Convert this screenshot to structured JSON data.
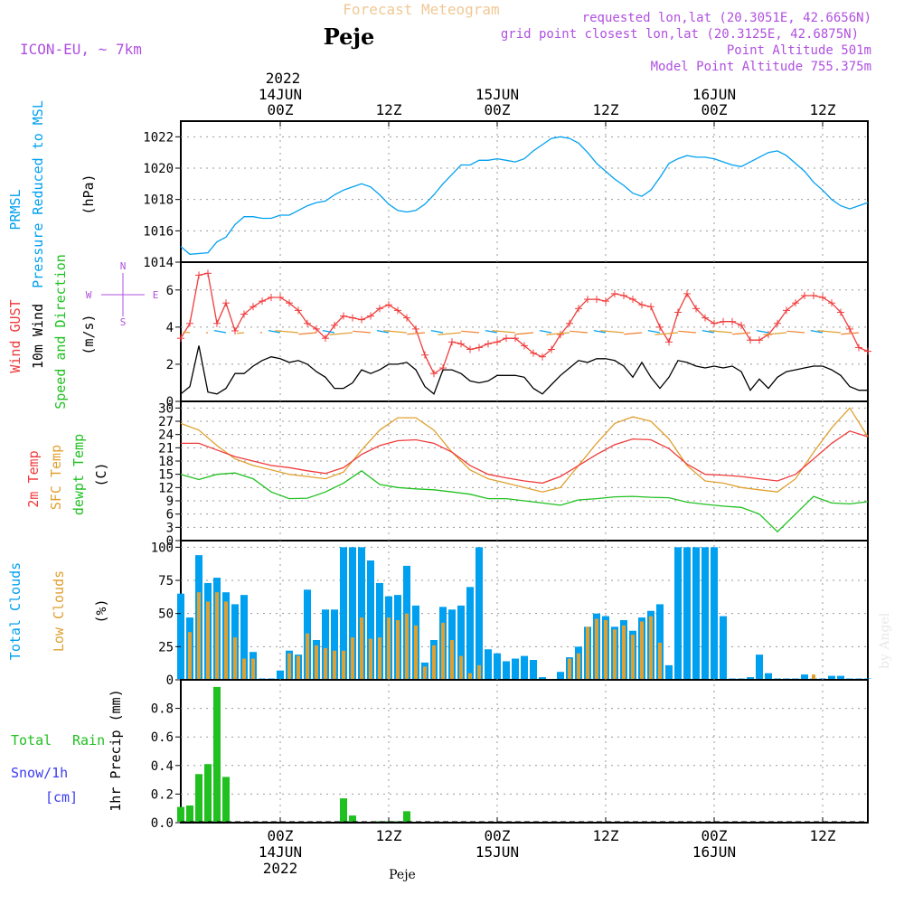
{
  "header": {
    "title": "Forecast Meteogram",
    "location": "Peje",
    "model": "ICON-EU, ~ 7km",
    "requested": "requested lon,lat (20.3051E, 42.6656N)",
    "gridpoint": "grid point closest lon,lat (20.3125E, 42.6875N)",
    "point_alt": "Point Altitude 501m",
    "model_alt": "Model Point Altitude 755.375m",
    "footer_name": "Peje",
    "watermark": "by Angel"
  },
  "time_axis": {
    "top_year": "2022",
    "labels": [
      {
        "day": "14JUN",
        "hour": "00Z",
        "t": 0
      },
      {
        "day": "",
        "hour": "12Z",
        "t": 12
      },
      {
        "day": "15JUN",
        "hour": "00Z",
        "t": 24
      },
      {
        "day": "",
        "hour": "12Z",
        "t": 36
      },
      {
        "day": "16JUN",
        "hour": "00Z",
        "t": 48
      },
      {
        "day": "",
        "hour": "12Z",
        "t": 60
      }
    ],
    "bottom_year": "2022",
    "range": [
      -11,
      65
    ]
  },
  "panels_text": {
    "pressure": {
      "left1": "PRMSL",
      "left2": "Pressure Reduced to MSL",
      "unit": "(hPa)"
    },
    "wind": {
      "left1": "Wind GUST",
      "left2": "10m Wind",
      "left3": "Speed and Direction",
      "unit": "(m/s)",
      "compass": [
        "N",
        "W",
        "E",
        "S"
      ]
    },
    "temp": {
      "left1": "2m Temp",
      "left2": "SFC Temp",
      "left3": "dewpt Temp",
      "unit": "(C)"
    },
    "clouds": {
      "left1": "Total Clouds",
      "left2": "Low Clouds",
      "unit": "(%)"
    },
    "precip": {
      "left1": "Total",
      "left2": "Rain",
      "left3": "Snow/1h",
      "left4": "[cm]",
      "unit": "1hr Precip (mm)"
    }
  },
  "colors": {
    "blue": "#00a0f0",
    "red": "#f03c3c",
    "orange": "#e0a030",
    "green": "#20c020",
    "purple": "#b050e0",
    "black": "#000000"
  },
  "chart_data": [
    {
      "type": "line",
      "name": "pressure",
      "x": [
        -11,
        -10,
        -8,
        -7,
        -6,
        -5,
        -4,
        -3,
        -2,
        -1,
        0,
        1,
        2,
        3,
        4,
        5,
        6,
        7,
        8,
        9,
        10,
        11,
        12,
        13,
        14,
        15,
        16,
        17,
        18,
        19,
        20,
        21,
        22,
        23,
        24,
        25,
        26,
        27,
        28,
        29,
        30,
        31,
        32,
        33,
        34,
        35,
        36,
        37,
        38,
        39,
        40,
        41,
        42,
        43,
        44,
        45,
        46,
        47,
        48,
        49,
        50,
        51,
        52,
        53,
        54,
        55,
        56,
        57,
        58,
        59,
        60,
        61,
        62,
        63,
        64,
        65
      ],
      "series": [
        {
          "name": "PRMSL",
          "values": [
            1015.0,
            1014.5,
            1014.6,
            1015.3,
            1015.6,
            1016.4,
            1016.9,
            1016.9,
            1016.8,
            1016.8,
            1017.0,
            1017.0,
            1017.3,
            1017.6,
            1017.8,
            1017.9,
            1018.3,
            1018.6,
            1018.8,
            1019.0,
            1018.8,
            1018.3,
            1017.7,
            1017.3,
            1017.2,
            1017.3,
            1017.7,
            1018.3,
            1019.0,
            1019.6,
            1020.2,
            1020.2,
            1020.5,
            1020.5,
            1020.6,
            1020.5,
            1020.4,
            1020.6,
            1021.1,
            1021.5,
            1021.9,
            1022.0,
            1021.9,
            1021.6,
            1021.0,
            1020.3,
            1019.8,
            1019.3,
            1018.9,
            1018.4,
            1018.2,
            1018.6,
            1019.4,
            1020.3,
            1020.6,
            1020.8,
            1020.7,
            1020.7,
            1020.6,
            1020.4,
            1020.2,
            1020.1,
            1020.4,
            1020.7,
            1021.0,
            1021.1,
            1020.8,
            1020.3,
            1019.8,
            1019.1,
            1018.6,
            1018.0,
            1017.6,
            1017.4,
            1017.6,
            1017.8
          ]
        }
      ],
      "ylim": [
        1014,
        1023
      ],
      "yticks": [
        1014,
        1016,
        1018,
        1020,
        1022
      ]
    },
    {
      "type": "line",
      "name": "wind",
      "x": [
        -11,
        -10,
        -9,
        -8,
        -7,
        -6,
        -5,
        -4,
        -3,
        -2,
        -1,
        0,
        1,
        2,
        3,
        4,
        5,
        6,
        7,
        8,
        9,
        10,
        11,
        12,
        13,
        14,
        15,
        16,
        17,
        18,
        19,
        20,
        21,
        22,
        23,
        24,
        25,
        26,
        27,
        28,
        29,
        30,
        31,
        32,
        33,
        34,
        35,
        36,
        37,
        38,
        39,
        40,
        41,
        42,
        43,
        44,
        45,
        46,
        47,
        48,
        49,
        50,
        51,
        52,
        53,
        54,
        55,
        56,
        57,
        58,
        59,
        60,
        61,
        62,
        63,
        64,
        65
      ],
      "series": [
        {
          "name": "Wind GUST",
          "values": [
            3.4,
            4.2,
            6.8,
            6.9,
            4.2,
            5.3,
            3.8,
            4.7,
            5.1,
            5.4,
            5.6,
            5.6,
            5.3,
            4.9,
            4.2,
            3.9,
            3.4,
            4.1,
            4.6,
            4.5,
            4.4,
            4.6,
            5.0,
            5.2,
            4.9,
            4.5,
            3.9,
            2.5,
            1.5,
            1.8,
            3.2,
            3.1,
            2.8,
            2.9,
            3.1,
            3.2,
            3.4,
            3.4,
            3.0,
            2.6,
            2.4,
            2.8,
            3.6,
            4.2,
            5.0,
            5.5,
            5.5,
            5.4,
            5.8,
            5.7,
            5.5,
            5.2,
            5.1,
            4.0,
            3.2,
            4.8,
            5.8,
            5.0,
            4.5,
            4.2,
            4.3,
            4.3,
            4.1,
            3.3,
            3.3,
            3.6,
            4.2,
            4.9,
            5.3,
            5.7,
            5.7,
            5.6,
            5.3,
            4.8,
            3.9,
            2.9,
            2.7
          ]
        },
        {
          "name": "10m Wind",
          "values": [
            0.4,
            0.8,
            3.0,
            0.5,
            0.4,
            0.7,
            1.5,
            1.5,
            1.9,
            2.2,
            2.4,
            2.3,
            2.1,
            2.2,
            2.0,
            1.6,
            1.3,
            0.7,
            0.7,
            1.0,
            1.7,
            1.5,
            1.7,
            2.0,
            2.0,
            2.1,
            1.7,
            0.8,
            0.4,
            1.7,
            1.7,
            1.5,
            1.1,
            1.0,
            1.1,
            1.4,
            1.4,
            1.4,
            1.3,
            0.7,
            0.4,
            0.9,
            1.4,
            1.8,
            2.2,
            2.1,
            2.3,
            2.3,
            2.2,
            1.9,
            1.3,
            2.1,
            1.3,
            0.7,
            1.3,
            2.2,
            2.1,
            1.9,
            1.8,
            1.9,
            1.8,
            1.9,
            1.6,
            0.6,
            1.2,
            0.7,
            1.3,
            1.6,
            1.7,
            1.8,
            1.9,
            1.9,
            1.7,
            1.4,
            0.8,
            0.6,
            0.6
          ]
        }
      ],
      "ylim": [
        0,
        7.5
      ],
      "yticks": [
        0,
        2,
        4,
        6
      ]
    },
    {
      "type": "line",
      "name": "temperature",
      "x": [
        -11,
        -9,
        -7,
        -5,
        -3,
        -1,
        1,
        3,
        5,
        7,
        9,
        11,
        13,
        15,
        17,
        19,
        21,
        23,
        25,
        27,
        29,
        31,
        33,
        35,
        37,
        39,
        41,
        43,
        45,
        47,
        49,
        51,
        53,
        55,
        57,
        59,
        61,
        63,
        65
      ],
      "series": [
        {
          "name": "2m Temp",
          "values": [
            22.0,
            22.0,
            20.5,
            19.0,
            18.0,
            17.0,
            16.5,
            15.8,
            15.2,
            16.5,
            19.5,
            21.5,
            22.6,
            22.8,
            22.0,
            20.0,
            17.0,
            15.0,
            14.2,
            13.5,
            13.0,
            14.5,
            17.0,
            19.5,
            21.7,
            23.0,
            22.8,
            20.8,
            17.3,
            15.0,
            14.8,
            14.5,
            14.0,
            13.5,
            15.0,
            18.5,
            22.0,
            24.8,
            23.5
          ]
        },
        {
          "name": "SFC Temp",
          "values": [
            26.5,
            25.0,
            21.5,
            18.5,
            17.0,
            16.0,
            15.0,
            14.5,
            14.0,
            15.5,
            20.5,
            25.0,
            27.8,
            27.8,
            25.0,
            20.0,
            16.0,
            14.0,
            13.0,
            12.0,
            11.0,
            12.0,
            17.0,
            22.0,
            26.5,
            28.0,
            27.0,
            23.0,
            17.0,
            13.5,
            13.0,
            12.0,
            11.5,
            11.0,
            14.0,
            20.0,
            25.5,
            30.0,
            23.5
          ]
        },
        {
          "name": "dewpt Temp",
          "values": [
            15.0,
            13.8,
            15.0,
            15.3,
            14.0,
            11.0,
            9.5,
            9.6,
            11.0,
            13.0,
            15.8,
            12.7,
            12.0,
            11.7,
            11.5,
            11.0,
            10.5,
            9.5,
            9.5,
            9.0,
            8.5,
            8.0,
            9.2,
            9.5,
            9.9,
            10.0,
            9.8,
            9.7,
            8.7,
            8.2,
            7.8,
            7.5,
            6.0,
            2.0,
            6.0,
            10.0,
            8.5,
            8.3,
            8.8
          ]
        }
      ],
      "ylim": [
        0,
        31.5
      ],
      "yticks": [
        0,
        3,
        6,
        9,
        12,
        15,
        18,
        21,
        24,
        27,
        30
      ]
    },
    {
      "type": "bar",
      "name": "clouds",
      "x": [
        -11,
        -10,
        -9,
        -8,
        -7,
        -6,
        -5,
        -4,
        -3,
        -2,
        -1,
        0,
        1,
        2,
        3,
        4,
        5,
        6,
        7,
        8,
        9,
        10,
        11,
        12,
        13,
        14,
        15,
        16,
        17,
        18,
        19,
        20,
        21,
        22,
        23,
        24,
        25,
        26,
        27,
        28,
        29,
        30,
        31,
        32,
        33,
        34,
        35,
        36,
        37,
        38,
        39,
        40,
        41,
        42,
        43,
        44,
        45,
        46,
        47,
        48,
        49,
        50,
        51,
        52,
        53,
        54,
        55,
        56,
        57,
        58,
        59,
        60,
        61,
        62,
        63,
        64,
        65
      ],
      "series": [
        {
          "name": "Total Clouds",
          "values": [
            65,
            47,
            94,
            73,
            77,
            66,
            57,
            64,
            21,
            1,
            1,
            7,
            22,
            19,
            68,
            30,
            53,
            53,
            100,
            100,
            100,
            90,
            73,
            63,
            64,
            86,
            56,
            13,
            30,
            55,
            53,
            56,
            70,
            100,
            23,
            20,
            14,
            16,
            18,
            15,
            2,
            0,
            6,
            17,
            25,
            40,
            50,
            48,
            40,
            45,
            37,
            47,
            52,
            57,
            11,
            100,
            100,
            100,
            100,
            100,
            48,
            1,
            1,
            2,
            19,
            5,
            1,
            1,
            1,
            4,
            1,
            1,
            3,
            3,
            1,
            1,
            1
          ]
        },
        {
          "name": "Low Clouds",
          "values": [
            0,
            36,
            66,
            59,
            66,
            59,
            32,
            16,
            16,
            0,
            0,
            0,
            20,
            18,
            35,
            26,
            24,
            22,
            22,
            32,
            47,
            31,
            32,
            47,
            45,
            50,
            41,
            10,
            26,
            43,
            30,
            18,
            5,
            11,
            0,
            0,
            0,
            0,
            0,
            0,
            0,
            0,
            0,
            16,
            20,
            40,
            46,
            45,
            38,
            41,
            34,
            44,
            48,
            28,
            0,
            0,
            0,
            0,
            0,
            0,
            0,
            0,
            0,
            0,
            0,
            0,
            0,
            0,
            0,
            0,
            4,
            0,
            0,
            0,
            0,
            0,
            0
          ]
        }
      ],
      "ylim": [
        0,
        105
      ],
      "yticks": [
        0,
        25,
        50,
        75,
        100
      ]
    },
    {
      "type": "bar",
      "name": "precip",
      "x": [
        -11,
        -10,
        -9,
        -8,
        -7,
        -6,
        7,
        8,
        11,
        12,
        13,
        14
      ],
      "series": [
        {
          "name": "1hr Precip",
          "values": [
            0.11,
            0.12,
            0.34,
            0.41,
            0.95,
            0.32,
            0.17,
            0.05,
            0.01,
            0.01,
            0.01,
            0.08
          ]
        }
      ],
      "ylim": [
        0,
        1.0
      ],
      "yticks": [
        0,
        0.2,
        0.4,
        0.6,
        0.8
      ]
    }
  ]
}
